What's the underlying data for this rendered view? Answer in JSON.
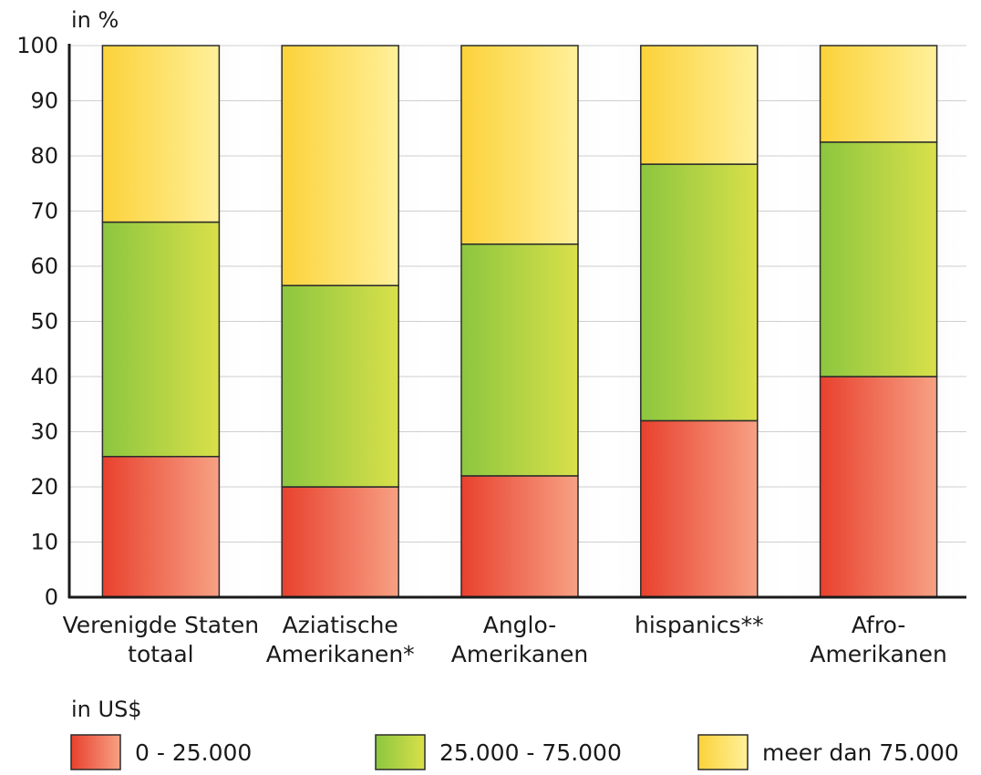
{
  "chart_data": {
    "type": "bar",
    "stacked": true,
    "ylabel": "in %",
    "ylim": [
      0,
      100
    ],
    "yticks": [
      0,
      10,
      20,
      30,
      40,
      50,
      60,
      70,
      80,
      90,
      100
    ],
    "grid": true,
    "categories": [
      [
        "Verenigde Staten",
        "totaal"
      ],
      [
        "Aziatische",
        "Amerikanen*"
      ],
      [
        "Anglo-",
        "Amerikanen"
      ],
      [
        "hispanics**"
      ],
      [
        "Afro-",
        "Amerikanen"
      ]
    ],
    "legend_title": "in US$",
    "legend_position": "bottom",
    "series": [
      {
        "name": "0 - 25.000",
        "values": [
          25.5,
          20,
          22,
          32,
          40
        ]
      },
      {
        "name": "25.000 - 75.000",
        "values": [
          42.5,
          36.5,
          42,
          46.5,
          42.5
        ]
      },
      {
        "name": "meer dan 75.000",
        "values": [
          32,
          43.5,
          36,
          21.5,
          17.5
        ]
      }
    ],
    "colors": {
      "series": [
        {
          "from": "#e8412e",
          "to": "#f7a184"
        },
        {
          "from": "#8cc63f",
          "to": "#d9e04a"
        },
        {
          "from": "#fbd23a",
          "to": "#fff09a"
        }
      ],
      "shade": "#e6e6e6",
      "grid": "#cfcfcf",
      "axis": "#1a1a1a"
    }
  }
}
